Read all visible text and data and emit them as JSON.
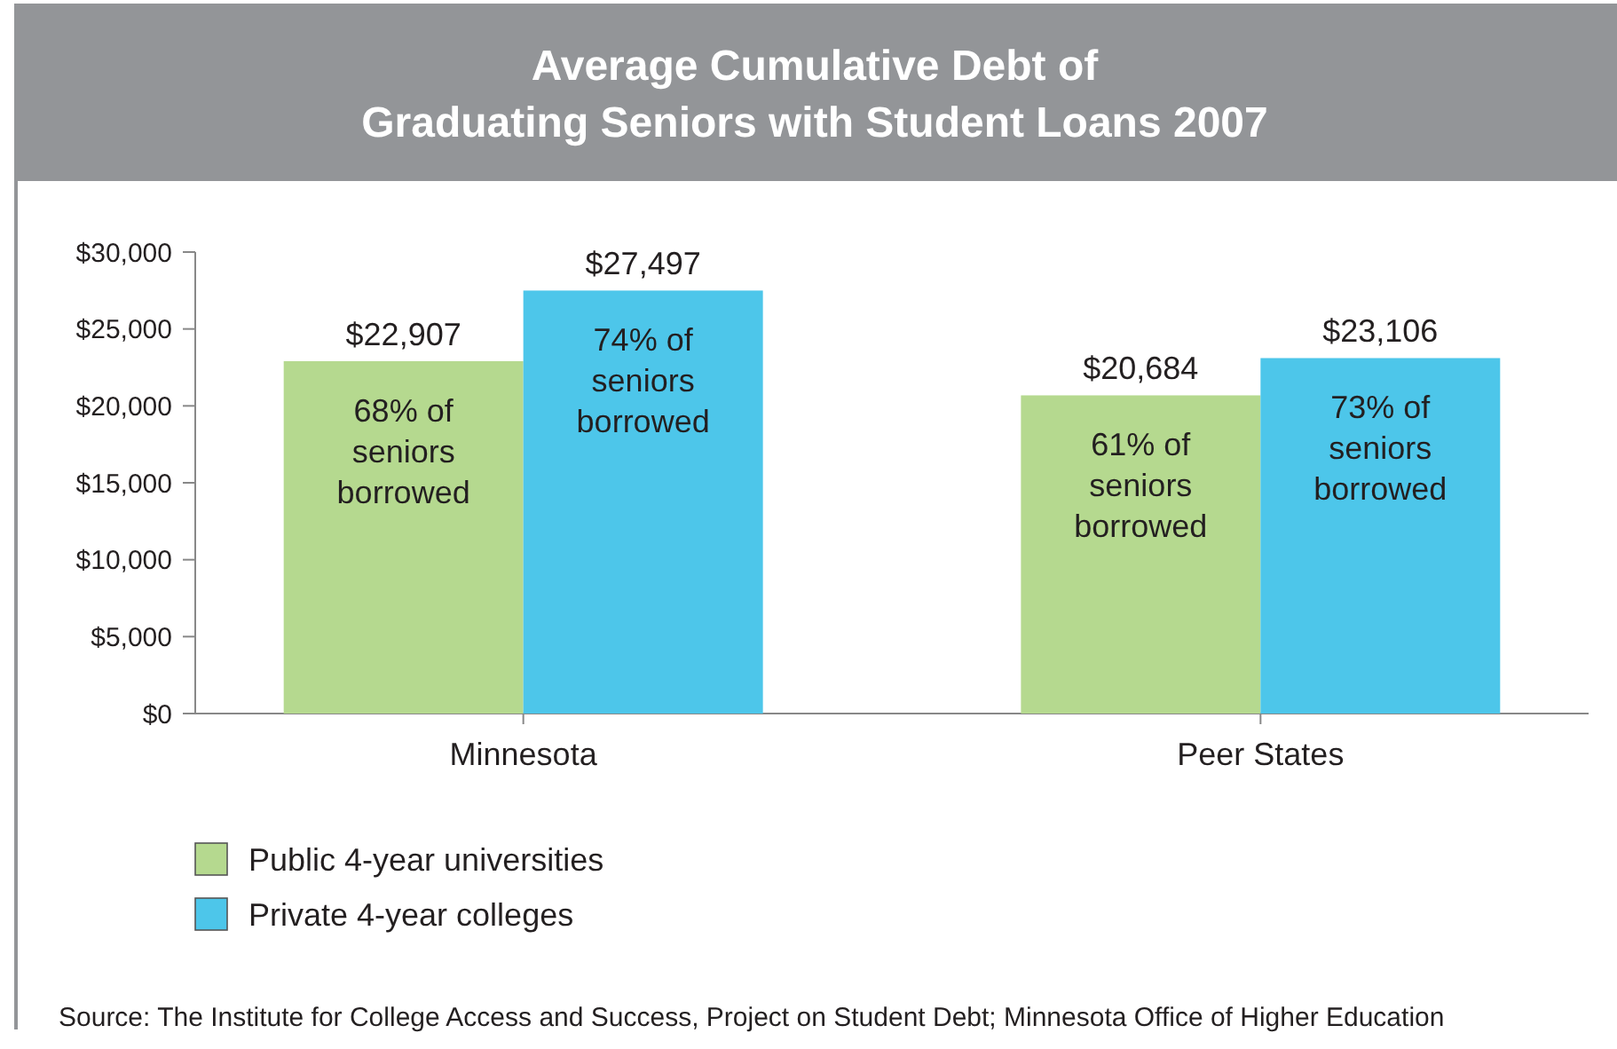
{
  "chart_data": {
    "type": "bar",
    "title": "Average Cumulative Debt of\nGraduating Seniors with Student Loans 2007",
    "categories": [
      "Minnesota",
      "Peer States"
    ],
    "series": [
      {
        "name": "Public 4-year universities",
        "color": "#b5d98f",
        "values": [
          22907,
          20684
        ],
        "value_labels": [
          "$22,907",
          "$20,684"
        ]
      },
      {
        "name": "Private 4-year colleges",
        "color": "#4dc6ea",
        "values": [
          27497,
          23106
        ],
        "value_labels": [
          "$27,497",
          "$23,106"
        ]
      }
    ],
    "ylim": [
      0,
      30000
    ],
    "yticks": [
      {
        "value": 0,
        "label": "$0"
      },
      {
        "value": 5000,
        "label": "$5,000"
      },
      {
        "value": 10000,
        "label": "$10,000"
      },
      {
        "value": 15000,
        "label": "$15,000"
      },
      {
        "value": 20000,
        "label": "$20,000"
      },
      {
        "value": 25000,
        "label": "$25,000"
      },
      {
        "value": 30000,
        "label": "$30,000"
      }
    ],
    "grid": false,
    "legend": "bottom left",
    "annotations": [
      {
        "text": "68% of\nseniors\nborrowed",
        "x": "Minnesota",
        "y": 22907
      },
      {
        "text": "74% of\nseniors\nborrowed",
        "x": "Minnesota",
        "y": 27497
      },
      {
        "text": "61% of\nseniors\nborrowed",
        "x": "Peer States",
        "y": 20684
      },
      {
        "text": "73% of\nseniors\nborrowed",
        "x": "Peer States",
        "y": 23106
      },
      "Source: The Institute for College Access and Success, Project on Student Debt; Minnesota Office of Higher Education"
    ]
  }
}
